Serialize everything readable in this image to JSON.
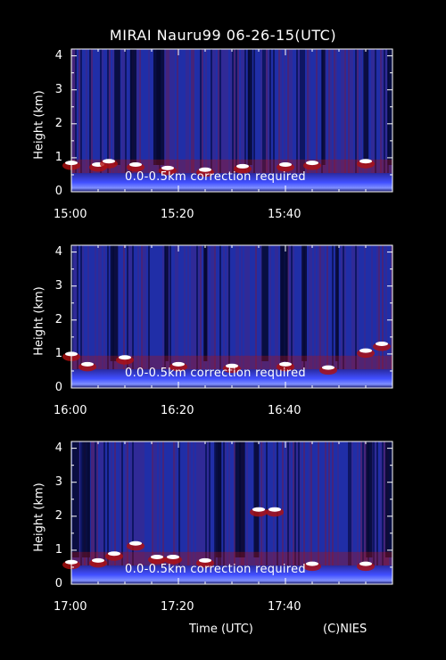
{
  "title": "MIRAI Nauru99 06-26-15(UTC)",
  "xlabel": "Time (UTC)",
  "credit": "(C)NIES",
  "colors": {
    "background": "#000000",
    "noise": "#2030c0",
    "cloud_low": "#b01010",
    "cloud_high": "#ffffff",
    "surface": "#3040ff"
  },
  "chart_data": [
    {
      "type": "heatmap",
      "ylabel": "Height (km)",
      "yticks": [
        "0",
        "1",
        "2",
        "3",
        "4"
      ],
      "ylim": [
        0,
        4.2
      ],
      "xticks": [
        "15:00",
        "15:20",
        "15:40"
      ],
      "xrange": [
        "15:00",
        "16:00"
      ],
      "annotation": "0.0-0.5km correction required",
      "cloud_base_km": [
        {
          "t": "15:00",
          "h": 0.85
        },
        {
          "t": "15:05",
          "h": 0.8
        },
        {
          "t": "15:07",
          "h": 0.9
        },
        {
          "t": "15:12",
          "h": 0.8
        },
        {
          "t": "15:18",
          "h": 0.7
        },
        {
          "t": "15:25",
          "h": 0.65
        },
        {
          "t": "15:32",
          "h": 0.75
        },
        {
          "t": "15:40",
          "h": 0.8
        },
        {
          "t": "15:45",
          "h": 0.85
        },
        {
          "t": "15:55",
          "h": 0.9
        }
      ]
    },
    {
      "type": "heatmap",
      "ylabel": "Height (km)",
      "yticks": [
        "0",
        "1",
        "2",
        "3",
        "4"
      ],
      "ylim": [
        0,
        4.2
      ],
      "xticks": [
        "16:00",
        "16:20",
        "16:40"
      ],
      "xrange": [
        "16:00",
        "17:00"
      ],
      "annotation": "0.0-0.5km correction required",
      "cloud_base_km": [
        {
          "t": "16:00",
          "h": 1.0
        },
        {
          "t": "16:03",
          "h": 0.7
        },
        {
          "t": "16:10",
          "h": 0.9
        },
        {
          "t": "16:20",
          "h": 0.7
        },
        {
          "t": "16:30",
          "h": 0.65
        },
        {
          "t": "16:40",
          "h": 0.7
        },
        {
          "t": "16:48",
          "h": 0.6
        },
        {
          "t": "16:55",
          "h": 1.1
        },
        {
          "t": "16:58",
          "h": 1.3
        }
      ]
    },
    {
      "type": "heatmap",
      "ylabel": "Height (km)",
      "yticks": [
        "0",
        "1",
        "2",
        "3",
        "4"
      ],
      "ylim": [
        0,
        4.2
      ],
      "xticks": [
        "17:00",
        "17:20",
        "17:40"
      ],
      "xrange": [
        "17:00",
        "18:00"
      ],
      "annotation": "0.0-0.5km correction required",
      "cloud_base_km": [
        {
          "t": "17:00",
          "h": 0.65
        },
        {
          "t": "17:05",
          "h": 0.7
        },
        {
          "t": "17:08",
          "h": 0.9
        },
        {
          "t": "17:12",
          "h": 1.2
        },
        {
          "t": "17:16",
          "h": 0.8
        },
        {
          "t": "17:19",
          "h": 0.8
        },
        {
          "t": "17:25",
          "h": 0.7
        },
        {
          "t": "17:35",
          "h": 2.2
        },
        {
          "t": "17:38",
          "h": 2.2
        },
        {
          "t": "17:45",
          "h": 0.6
        },
        {
          "t": "17:55",
          "h": 0.6
        }
      ]
    }
  ]
}
